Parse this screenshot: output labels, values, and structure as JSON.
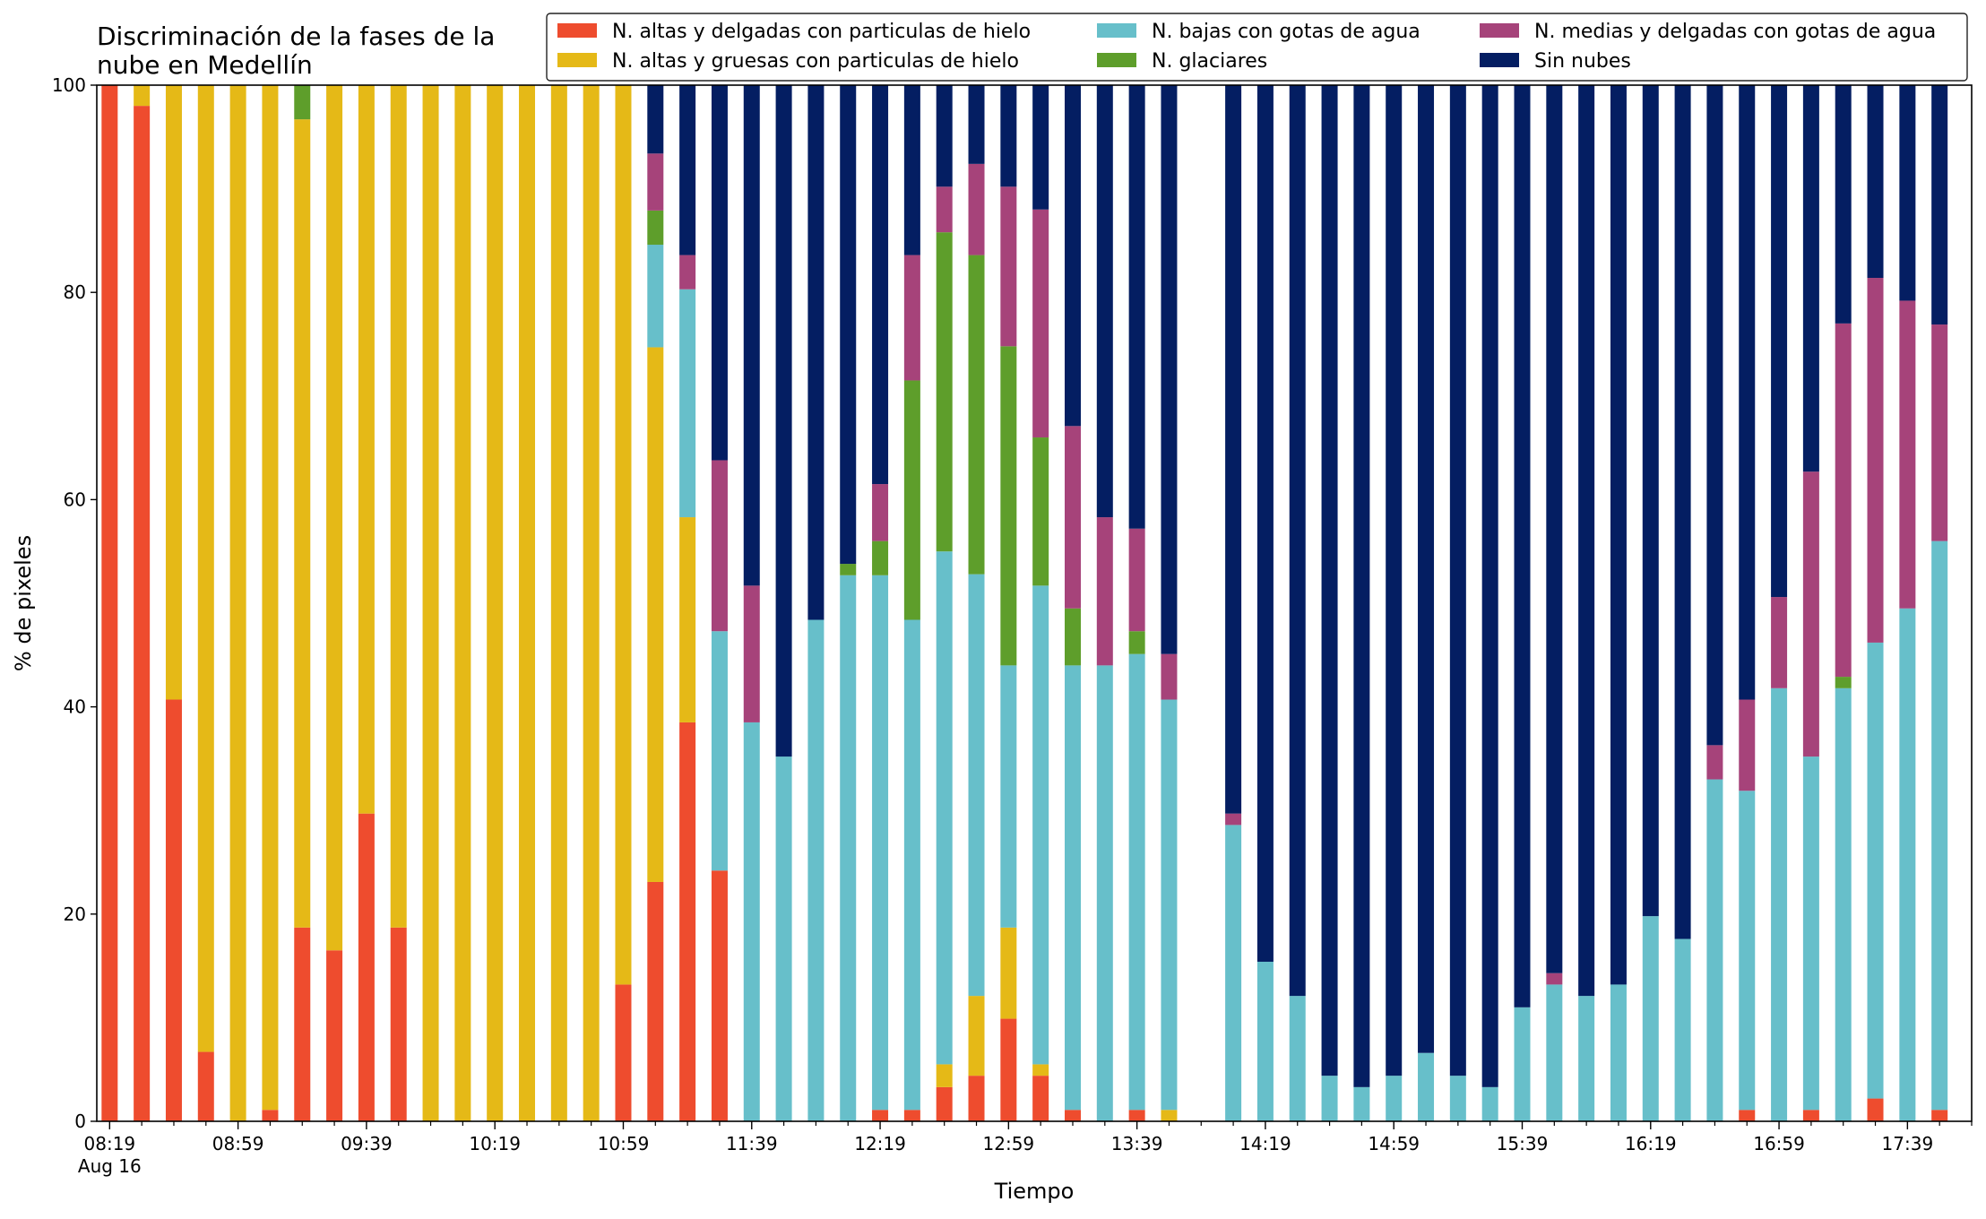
{
  "chart_data": {
    "type": "bar",
    "stacked": true,
    "title_lines": [
      "Discriminación de la fases de la",
      "nube en Medellín"
    ],
    "xlabel": "Tiempo",
    "ylabel": "% de pixeles",
    "ylim": [
      0,
      100
    ],
    "yticks": [
      0,
      20,
      40,
      60,
      80,
      100
    ],
    "xlim_minutes": [
      495,
      1079
    ],
    "time_step_minutes": 10,
    "x_major_ticks": [
      {
        "time": "08:19",
        "sub": "Aug 16"
      },
      {
        "time": "08:59",
        "sub": ""
      },
      {
        "time": "09:39",
        "sub": ""
      },
      {
        "time": "10:19",
        "sub": ""
      },
      {
        "time": "10:59",
        "sub": ""
      },
      {
        "time": "11:39",
        "sub": ""
      },
      {
        "time": "12:19",
        "sub": ""
      },
      {
        "time": "12:59",
        "sub": ""
      },
      {
        "time": "13:39",
        "sub": ""
      },
      {
        "time": "14:19",
        "sub": ""
      },
      {
        "time": "14:59",
        "sub": ""
      },
      {
        "time": "15:39",
        "sub": ""
      },
      {
        "time": "16:19",
        "sub": ""
      },
      {
        "time": "16:59",
        "sub": ""
      },
      {
        "time": "17:39",
        "sub": ""
      }
    ],
    "legend_location": "top-right",
    "series": [
      {
        "name": "N. altas y delgadas con particulas de hielo",
        "color": "#ee4c2e"
      },
      {
        "name": "N. altas y gruesas con particulas de hielo",
        "color": "#e5b917"
      },
      {
        "name": "N. bajas con gotas de agua",
        "color": "#67bfca"
      },
      {
        "name": "N. glaciares",
        "color": "#5e9e2b"
      },
      {
        "name": "N. medias y delgadas con gotas de agua",
        "color": "#a6437a"
      },
      {
        "name": "Sin nubes",
        "color": "#041e62"
      }
    ],
    "series_order_bottom_to_top": [
      "N. altas y delgadas con particulas de hielo",
      "N. altas y gruesas con particulas de hielo",
      "N. bajas con gotas de agua",
      "N. glaciares",
      "N. medias y delgadas con gotas de agua",
      "Sin nubes"
    ],
    "bars": [
      {
        "time": "08:19",
        "values": [
          100,
          0,
          0,
          0,
          0,
          0
        ]
      },
      {
        "time": "08:29",
        "values": [
          98,
          2,
          0,
          0,
          0,
          0
        ]
      },
      {
        "time": "08:39",
        "values": [
          40.7,
          59.3,
          0,
          0,
          0,
          0
        ]
      },
      {
        "time": "08:49",
        "values": [
          6.7,
          93.3,
          0,
          0,
          0,
          0
        ]
      },
      {
        "time": "08:59",
        "values": [
          0,
          100,
          0,
          0,
          0,
          0
        ]
      },
      {
        "time": "09:09",
        "values": [
          1.1,
          98.9,
          0,
          0,
          0,
          0
        ]
      },
      {
        "time": "09:19",
        "values": [
          18.7,
          78,
          0,
          3.3,
          0,
          0
        ]
      },
      {
        "time": "09:29",
        "values": [
          16.5,
          83.5,
          0,
          0,
          0,
          0
        ]
      },
      {
        "time": "09:39",
        "values": [
          29.7,
          70.3,
          0,
          0,
          0,
          0
        ]
      },
      {
        "time": "09:49",
        "values": [
          18.7,
          81.3,
          0,
          0,
          0,
          0
        ]
      },
      {
        "time": "09:59",
        "values": [
          0,
          100,
          0,
          0,
          0,
          0
        ]
      },
      {
        "time": "10:09",
        "values": [
          0,
          100,
          0,
          0,
          0,
          0
        ]
      },
      {
        "time": "10:19",
        "values": [
          0,
          100,
          0,
          0,
          0,
          0
        ]
      },
      {
        "time": "10:29",
        "values": [
          0,
          100,
          0,
          0,
          0,
          0
        ]
      },
      {
        "time": "10:39",
        "values": [
          0,
          100,
          0,
          0,
          0,
          0
        ]
      },
      {
        "time": "10:49",
        "values": [
          0,
          100,
          0,
          0,
          0,
          0
        ]
      },
      {
        "time": "10:59",
        "values": [
          13.2,
          86.8,
          0,
          0,
          0,
          0
        ]
      },
      {
        "time": "11:09",
        "values": [
          23.1,
          51.6,
          9.9,
          3.3,
          5.5,
          6.6
        ]
      },
      {
        "time": "11:19",
        "values": [
          38.5,
          19.8,
          22,
          0,
          3.3,
          16.4
        ]
      },
      {
        "time": "11:29",
        "values": [
          24.2,
          0,
          23.1,
          0,
          16.5,
          36.2
        ]
      },
      {
        "time": "11:39",
        "values": [
          0,
          0,
          38.5,
          0,
          13.2,
          48.3
        ]
      },
      {
        "time": "11:49",
        "values": [
          0,
          0,
          35.2,
          0,
          0,
          64.8
        ]
      },
      {
        "time": "11:59",
        "values": [
          0,
          0,
          48.4,
          0,
          0,
          51.6
        ]
      },
      {
        "time": "12:09",
        "values": [
          0,
          0,
          52.7,
          1.1,
          0,
          46.2
        ]
      },
      {
        "time": "12:19",
        "values": [
          1.1,
          0,
          51.6,
          3.3,
          5.5,
          38.5
        ]
      },
      {
        "time": "12:29",
        "values": [
          1.1,
          0,
          47.3,
          23.1,
          12.1,
          16.4
        ]
      },
      {
        "time": "12:39",
        "values": [
          3.3,
          2.2,
          49.5,
          30.8,
          4.4,
          9.8
        ]
      },
      {
        "time": "12:49",
        "values": [
          4.4,
          7.7,
          40.7,
          30.8,
          8.8,
          7.6
        ]
      },
      {
        "time": "12:59",
        "values": [
          9.9,
          8.8,
          25.3,
          30.8,
          15.4,
          9.8
        ]
      },
      {
        "time": "13:09",
        "values": [
          4.4,
          1.1,
          46.2,
          14.3,
          22,
          12
        ]
      },
      {
        "time": "13:19",
        "values": [
          1.1,
          0,
          42.9,
          5.5,
          17.6,
          32.9
        ]
      },
      {
        "time": "13:29",
        "values": [
          0,
          0,
          44,
          0,
          14.3,
          41.7
        ]
      },
      {
        "time": "13:39",
        "values": [
          1.1,
          0,
          44,
          2.2,
          9.9,
          42.8
        ]
      },
      {
        "time": "13:49",
        "values": [
          0,
          1.1,
          39.6,
          0,
          4.4,
          54.9
        ]
      },
      {
        "time": "14:09",
        "values": [
          0,
          0,
          28.6,
          0,
          1.1,
          70.3
        ]
      },
      {
        "time": "14:19",
        "values": [
          0,
          0,
          15.4,
          0,
          0,
          84.6
        ]
      },
      {
        "time": "14:29",
        "values": [
          0,
          0,
          12.1,
          0,
          0,
          87.9
        ]
      },
      {
        "time": "14:39",
        "values": [
          0,
          0,
          4.4,
          0,
          0,
          95.6
        ]
      },
      {
        "time": "14:49",
        "values": [
          0,
          0,
          3.3,
          0,
          0,
          96.7
        ]
      },
      {
        "time": "14:59",
        "values": [
          0,
          0,
          4.4,
          0,
          0,
          95.6
        ]
      },
      {
        "time": "15:09",
        "values": [
          0,
          0,
          6.6,
          0,
          0,
          93.4
        ]
      },
      {
        "time": "15:19",
        "values": [
          0,
          0,
          4.4,
          0,
          0,
          95.6
        ]
      },
      {
        "time": "15:29",
        "values": [
          0,
          0,
          3.3,
          0,
          0,
          96.7
        ]
      },
      {
        "time": "15:39",
        "values": [
          0,
          0,
          11,
          0,
          0,
          89
        ]
      },
      {
        "time": "15:49",
        "values": [
          0,
          0,
          13.2,
          0,
          1.1,
          85.7
        ]
      },
      {
        "time": "15:59",
        "values": [
          0,
          0,
          12.1,
          0,
          0,
          87.9
        ]
      },
      {
        "time": "16:09",
        "values": [
          0,
          0,
          13.2,
          0,
          0,
          86.8
        ]
      },
      {
        "time": "16:19",
        "values": [
          0,
          0,
          19.8,
          0,
          0,
          80.2
        ]
      },
      {
        "time": "16:29",
        "values": [
          0,
          0,
          17.6,
          0,
          0,
          82.4
        ]
      },
      {
        "time": "16:39",
        "values": [
          0,
          0,
          33,
          0,
          3.3,
          63.7
        ]
      },
      {
        "time": "16:49",
        "values": [
          1.1,
          0,
          30.8,
          0,
          8.8,
          59.3
        ]
      },
      {
        "time": "16:59",
        "values": [
          0,
          0,
          41.8,
          0,
          8.8,
          49.4
        ]
      },
      {
        "time": "17:09",
        "values": [
          1.1,
          0,
          34.1,
          0,
          27.5,
          37.3
        ]
      },
      {
        "time": "17:19",
        "values": [
          0,
          0,
          41.8,
          1.1,
          34.1,
          23
        ]
      },
      {
        "time": "17:29",
        "values": [
          2.2,
          0,
          44,
          0,
          35.2,
          18.6
        ]
      },
      {
        "time": "17:39",
        "values": [
          0,
          0,
          49.5,
          0,
          29.7,
          20.8
        ]
      },
      {
        "time": "17:49",
        "values": [
          1.1,
          0,
          54.9,
          0,
          20.9,
          23.1
        ]
      }
    ]
  }
}
